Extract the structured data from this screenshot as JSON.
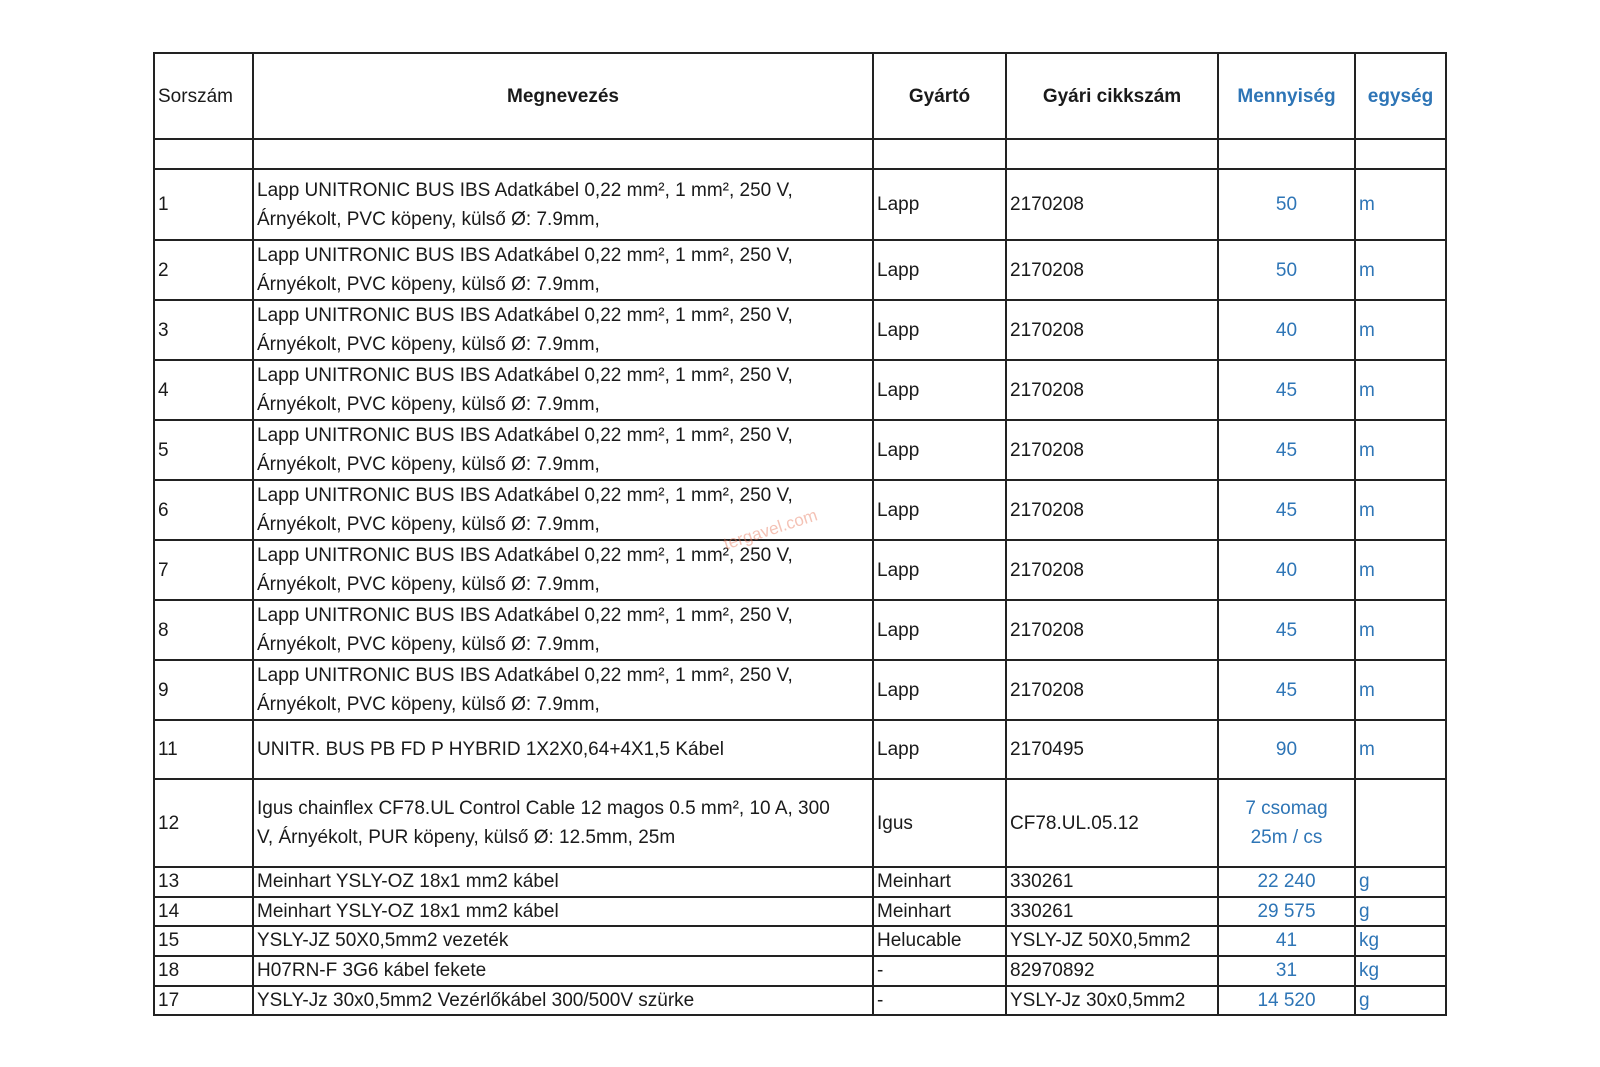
{
  "headers": [
    "Sorszám",
    "Megnevezés",
    "Gyártó",
    "Gyári cikkszám",
    "Mennyiség",
    "egység"
  ],
  "rows": [
    {
      "no": "1",
      "name": "Lapp UNITRONIC BUS IBS Adatkábel 0,22 mm², 1 mm², 250 V,\nÁrnyékolt, PVC köpeny, külső Ø: 7.9mm,",
      "maker": "Lapp",
      "code": "2170208",
      "qty": "50",
      "unit": "m"
    },
    {
      "no": "2",
      "name": "Lapp UNITRONIC BUS IBS Adatkábel 0,22 mm², 1 mm², 250 V,\nÁrnyékolt, PVC köpeny, külső Ø: 7.9mm,",
      "maker": "Lapp",
      "code": "2170208",
      "qty": "50",
      "unit": "m"
    },
    {
      "no": "3",
      "name": "Lapp UNITRONIC BUS IBS Adatkábel 0,22 mm², 1 mm², 250 V,\nÁrnyékolt, PVC köpeny, külső Ø: 7.9mm,",
      "maker": "Lapp",
      "code": "2170208",
      "qty": "40",
      "unit": "m"
    },
    {
      "no": "4",
      "name": "Lapp UNITRONIC BUS IBS Adatkábel 0,22 mm², 1 mm², 250 V,\nÁrnyékolt, PVC köpeny, külső Ø: 7.9mm,",
      "maker": "Lapp",
      "code": "2170208",
      "qty": "45",
      "unit": "m"
    },
    {
      "no": "5",
      "name": "Lapp UNITRONIC BUS IBS Adatkábel 0,22 mm², 1 mm², 250 V,\nÁrnyékolt, PVC köpeny, külső Ø: 7.9mm,",
      "maker": "Lapp",
      "code": "2170208",
      "qty": "45",
      "unit": "m"
    },
    {
      "no": "6",
      "name": "Lapp UNITRONIC BUS IBS Adatkábel 0,22 mm², 1 mm², 250 V,\nÁrnyékolt, PVC köpeny, külső Ø: 7.9mm,",
      "maker": "Lapp",
      "code": "2170208",
      "qty": "45",
      "unit": "m"
    },
    {
      "no": "7",
      "name": "Lapp UNITRONIC BUS IBS Adatkábel 0,22 mm², 1 mm², 250 V,\nÁrnyékolt, PVC köpeny, külső Ø: 7.9mm,",
      "maker": "Lapp",
      "code": "2170208",
      "qty": "40",
      "unit": "m"
    },
    {
      "no": "8",
      "name": "Lapp UNITRONIC BUS IBS Adatkábel 0,22 mm², 1 mm², 250 V,\nÁrnyékolt, PVC köpeny, külső Ø: 7.9mm,",
      "maker": "Lapp",
      "code": "2170208",
      "qty": "45",
      "unit": "m"
    },
    {
      "no": "9",
      "name": "Lapp UNITRONIC BUS IBS Adatkábel 0,22 mm², 1 mm², 250 V,\nÁrnyékolt, PVC köpeny, külső Ø: 7.9mm,",
      "maker": "Lapp",
      "code": "2170208",
      "qty": "45",
      "unit": "m"
    },
    {
      "no": "11",
      "name": "UNITR. BUS PB FD P HYBRID 1X2X0,64+4X1,5 Kábel",
      "maker": "Lapp",
      "code": "2170495",
      "qty": "90",
      "unit": "m"
    },
    {
      "no": "12",
      "name": "Igus chainflex CF78.UL Control Cable 12 magos 0.5 mm², 10 A, 300\nV, Árnyékolt, PUR köpeny, külső Ø: 12.5mm, 25m",
      "maker": "Igus",
      "code": "CF78.UL.05.12",
      "qty": "7 csomag\n25m / cs",
      "unit": ""
    },
    {
      "no": "13",
      "name": "Meinhart YSLY-OZ 18x1 mm2 kábel",
      "maker": "Meinhart",
      "code": "330261",
      "qty": "22 240",
      "unit": "g"
    },
    {
      "no": "14",
      "name": "Meinhart YSLY-OZ 18x1 mm2 kábel",
      "maker": "Meinhart",
      "code": "330261",
      "qty": "29 575",
      "unit": "g"
    },
    {
      "no": "15",
      "name": "YSLY-JZ 50X0,5mm2 vezeték",
      "maker": "Helucable",
      "code": "YSLY-JZ 50X0,5mm2",
      "qty": "41",
      "unit": "kg"
    },
    {
      "no": "18",
      "name": "H07RN-F 3G6 kábel fekete",
      "maker": "-",
      "code": "82970892",
      "qty": "31",
      "unit": "kg"
    },
    {
      "no": "17",
      "name": "YSLY-Jz 30x0,5mm2 Vezérlőkábel 300/500V szürke",
      "maker": "-",
      "code": "YSLY-Jz 30x0,5mm2",
      "qty": "14 520",
      "unit": "g"
    }
  ],
  "watermark": "tergavel.com",
  "colors": {
    "accent": "#2e75b6",
    "border": "#222222"
  }
}
